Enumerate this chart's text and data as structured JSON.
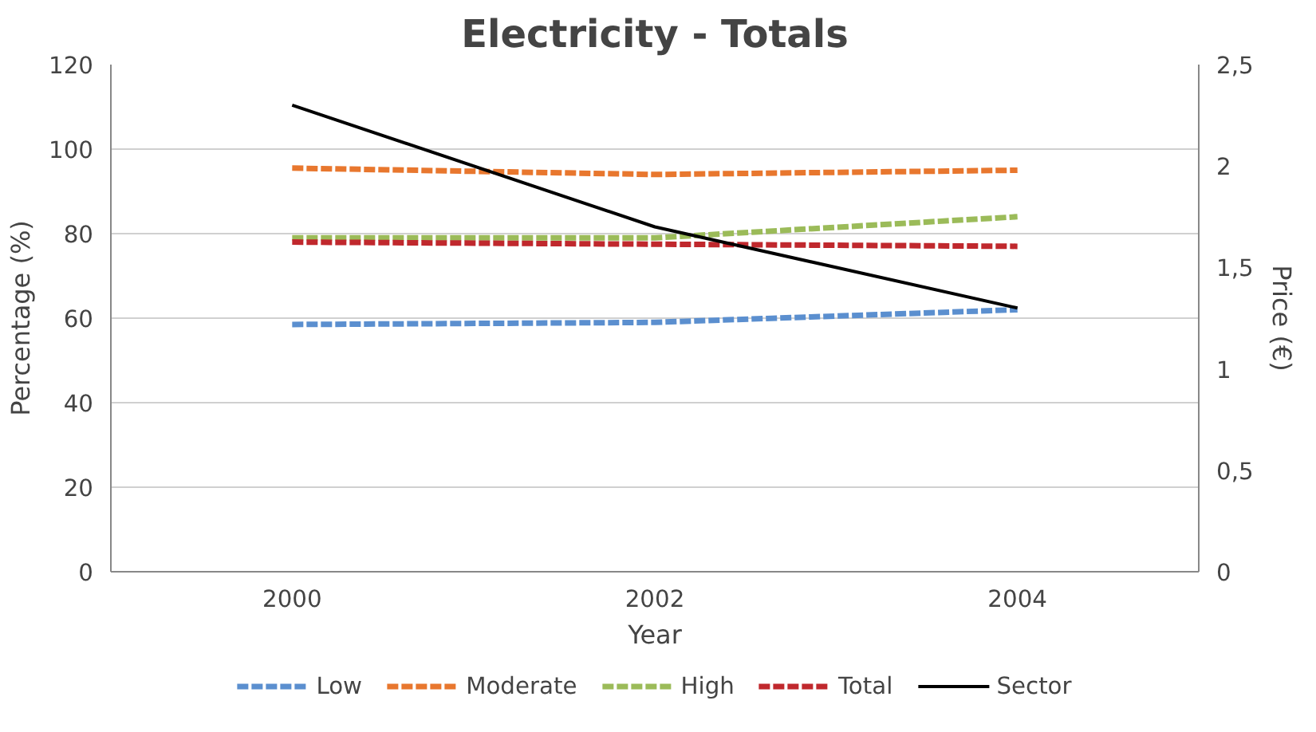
{
  "chart_data": {
    "type": "line",
    "title": "Electricity - Totals",
    "xlabel": "Year",
    "ylabel": "Percentage (%)",
    "y2label": "Price (€)",
    "categories": [
      "2000",
      "2002",
      "2004"
    ],
    "ylim": [
      0,
      120
    ],
    "yticks": [
      0,
      20,
      40,
      60,
      80,
      100,
      120
    ],
    "y2lim": [
      0,
      2.5
    ],
    "y2ticks": [
      0,
      {
        "value": 0.5,
        "label": "0,5"
      },
      1,
      {
        "value": 1.5,
        "label": "1,5"
      },
      2,
      {
        "value": 2.5,
        "label": "2,5"
      }
    ],
    "grid": "y",
    "legend": "bottom",
    "series": [
      {
        "name": "Low",
        "color": "#5b8fcf",
        "values": [
          58.5,
          59,
          62
        ],
        "line_style": "dashed"
      },
      {
        "name": "Moderate",
        "color": "#e8772e",
        "values": [
          95.5,
          94,
          95
        ],
        "line_style": "dashed"
      },
      {
        "name": "High",
        "color": "#9bbb59",
        "values": [
          79,
          79,
          84
        ],
        "line_style": "dashed"
      },
      {
        "name": "Total",
        "color": "#c0282d",
        "values": [
          78,
          77.5,
          77
        ],
        "line_style": "dashed"
      },
      {
        "name": "Sector",
        "color": "#000000",
        "values": [
          2.3,
          1.7,
          1.3
        ],
        "axis": "y2",
        "line_style": "solid"
      }
    ]
  }
}
